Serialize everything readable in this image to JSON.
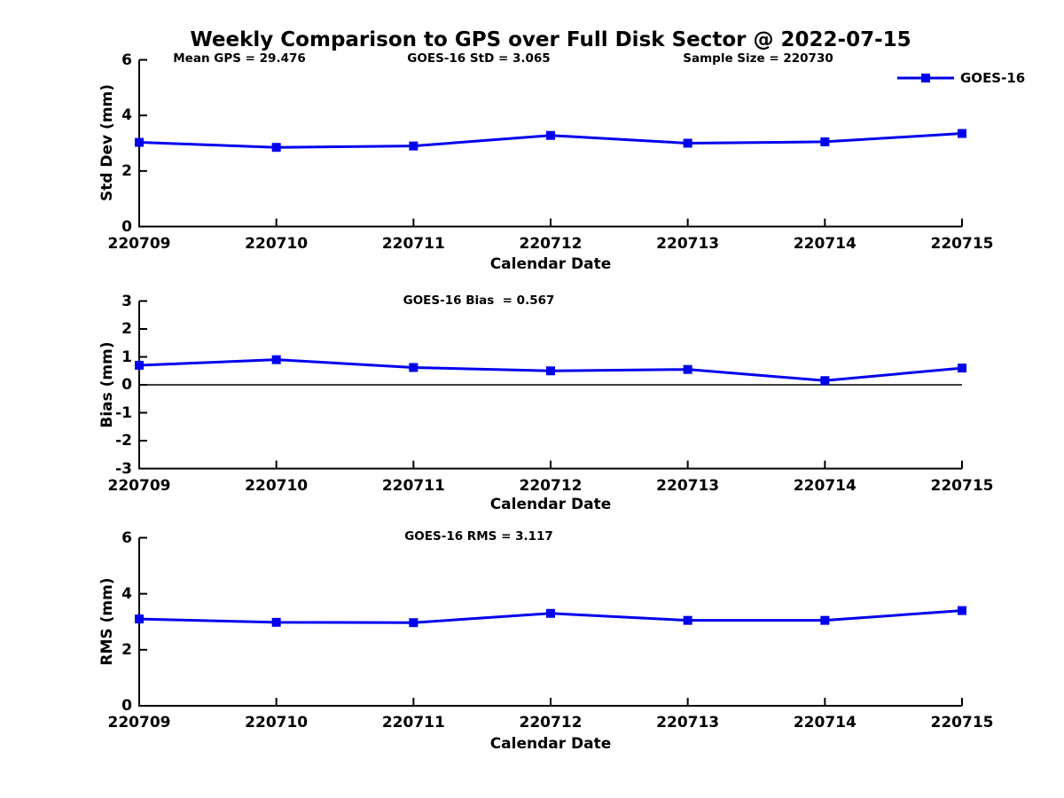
{
  "title": "Weekly Comparison to GPS over Full Disk Sector @ 2022-07-15",
  "legend": {
    "label": "GOES-16"
  },
  "series_color": "#0000ee",
  "axis_color": "#000000",
  "chart_data": [
    {
      "type": "line",
      "ylabel": "Std Dev (mm)",
      "xlabel": "Calendar Date",
      "annotations": [
        "Mean GPS = 29.476",
        "GOES-16 StD = 3.065",
        "Sample Size = 220730"
      ],
      "categories": [
        "220709",
        "220710",
        "220711",
        "220712",
        "220713",
        "220714",
        "220715"
      ],
      "series": [
        {
          "name": "GOES-16",
          "values": [
            3.03,
            2.85,
            2.9,
            3.28,
            3.0,
            3.05,
            3.35
          ]
        }
      ],
      "ylim": [
        0,
        6
      ],
      "yticks": [
        0,
        2,
        4,
        6
      ],
      "grid": false,
      "legend_position": "top-right"
    },
    {
      "type": "line",
      "ylabel": "Bias (mm)",
      "xlabel": "Calendar Date",
      "annotations": [
        "GOES-16 Bias  = 0.567"
      ],
      "categories": [
        "220709",
        "220710",
        "220711",
        "220712",
        "220713",
        "220714",
        "220715"
      ],
      "series": [
        {
          "name": "GOES-16",
          "values": [
            0.7,
            0.9,
            0.62,
            0.5,
            0.55,
            0.15,
            0.6
          ]
        }
      ],
      "ylim": [
        -3,
        3
      ],
      "yticks": [
        -3,
        -2,
        -1,
        0,
        1,
        2,
        3
      ],
      "zero_line": true,
      "grid": false
    },
    {
      "type": "line",
      "ylabel": "RMS (mm)",
      "xlabel": "Calendar Date",
      "annotations": [
        "GOES-16 RMS = 3.117"
      ],
      "categories": [
        "220709",
        "220710",
        "220711",
        "220712",
        "220713",
        "220714",
        "220715"
      ],
      "series": [
        {
          "name": "GOES-16",
          "values": [
            3.1,
            2.98,
            2.97,
            3.3,
            3.05,
            3.05,
            3.4
          ]
        }
      ],
      "ylim": [
        0,
        6
      ],
      "yticks": [
        0,
        2,
        4,
        6
      ],
      "grid": false
    }
  ]
}
